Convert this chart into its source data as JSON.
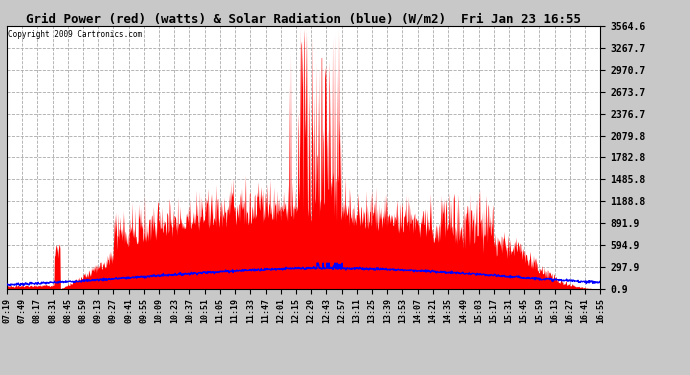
{
  "title": "Grid Power (red) (watts) & Solar Radiation (blue) (W/m2)  Fri Jan 23 16:55",
  "copyright": "Copyright 2009 Cartronics.com",
  "bg_color": "#c8c8c8",
  "plot_bg_color": "#ffffff",
  "grid_color": "#aaaaaa",
  "red_color": "#ff0000",
  "blue_color": "#0000ff",
  "y_min": 0.9,
  "y_max": 3564.6,
  "y_ticks": [
    0.9,
    297.9,
    594.9,
    891.9,
    1188.8,
    1485.8,
    1782.8,
    2079.8,
    2376.7,
    2673.7,
    2970.7,
    3267.7,
    3564.6
  ],
  "x_labels": [
    "07:19",
    "07:49",
    "08:17",
    "08:31",
    "08:45",
    "08:59",
    "09:13",
    "09:27",
    "09:41",
    "09:55",
    "10:09",
    "10:23",
    "10:37",
    "10:51",
    "11:05",
    "11:19",
    "11:33",
    "11:47",
    "12:01",
    "12:15",
    "12:29",
    "12:43",
    "12:57",
    "13:11",
    "13:25",
    "13:39",
    "13:53",
    "14:07",
    "14:21",
    "14:35",
    "14:49",
    "15:03",
    "15:17",
    "15:31",
    "15:45",
    "15:59",
    "16:13",
    "16:27",
    "16:41",
    "16:55"
  ]
}
